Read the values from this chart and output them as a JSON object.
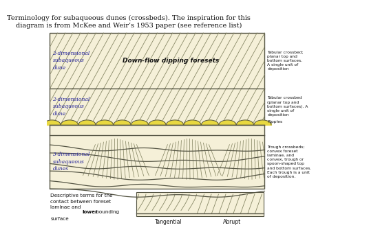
{
  "title_line1": "Terminology for subaqueous dunes (crossbeds). The inspiration for this",
  "title_line2": "diagram is from McKee and Weir’s 1953 paper (see reference list)",
  "bg": "#f5f0d8",
  "outer_bg": "#ffffff",
  "line_color": "#888866",
  "dark_line": "#555544",
  "ripple_fill": "#e8d840",
  "right_labels": [
    "Tabular crossbed;\nplanar top and\nbottom surfaces.\nA single unit of\ndeposition",
    "Tabular crossbed\n(planar top and\nbottom surfaces). A\nsingle unit of\ndeposition",
    "Ripples",
    "Trough crossbeds;\nconvex foreset\nlaminae, and\nconvex, trough or\nspoon-shaped top\nand bottom surfaces.\nEach trough is a unit\nof deposition."
  ],
  "left_labels": [
    "2-dimensional\nsubaqueous\ndune",
    "2-dimensional\nsubaqueous\ndune",
    "3-dimensional\nsubaqueous\ndunes"
  ],
  "center_label": "Down-flow dipping foresets",
  "bottom_left_text_1": "Descriptive terms for the\ncontact between foreset\nlaminae and ",
  "bottom_left_bold": "lower",
  "bottom_left_text_2": " bounding\nsurface",
  "bottom_labels": [
    "Tangential",
    "Abrupt"
  ]
}
